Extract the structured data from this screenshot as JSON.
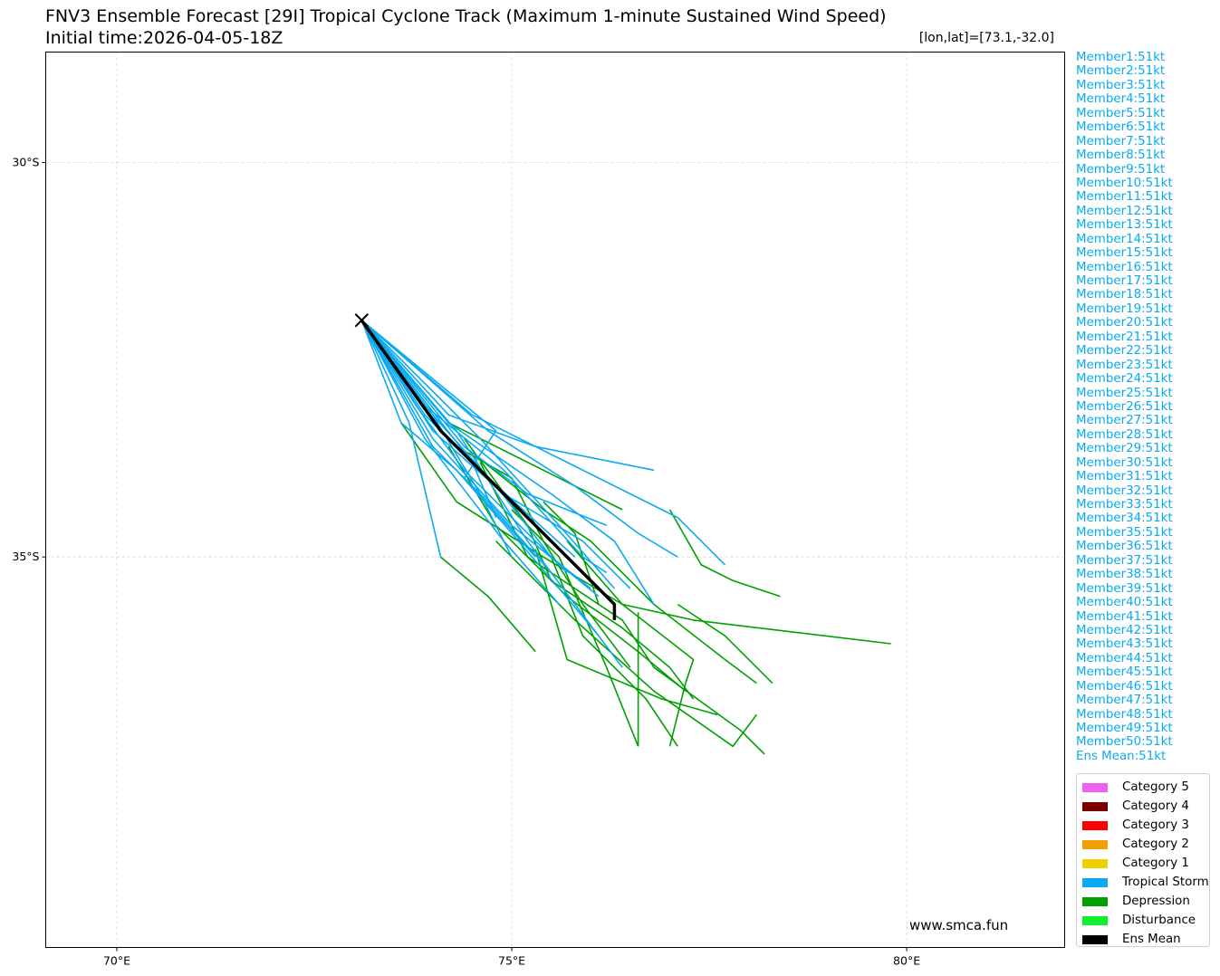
{
  "title": {
    "line1": "FNV3 Ensemble Forecast [29I] Tropical Cyclone Track (Maximum 1-minute Sustained Wind Speed)",
    "line2": "Initial time:2026-04-05-18Z"
  },
  "position_label": "[lon,lat]=[73.1,-32.0]",
  "watermark": "www.smca.fun",
  "members": [
    "Member1:51kt",
    "Member2:51kt",
    "Member3:51kt",
    "Member4:51kt",
    "Member5:51kt",
    "Member6:51kt",
    "Member7:51kt",
    "Member8:51kt",
    "Member9:51kt",
    "Member10:51kt",
    "Member11:51kt",
    "Member12:51kt",
    "Member13:51kt",
    "Member14:51kt",
    "Member15:51kt",
    "Member16:51kt",
    "Member17:51kt",
    "Member18:51kt",
    "Member19:51kt",
    "Member20:51kt",
    "Member21:51kt",
    "Member22:51kt",
    "Member23:51kt",
    "Member24:51kt",
    "Member25:51kt",
    "Member26:51kt",
    "Member27:51kt",
    "Member28:51kt",
    "Member29:51kt",
    "Member30:51kt",
    "Member31:51kt",
    "Member32:51kt",
    "Member33:51kt",
    "Member34:51kt",
    "Member35:51kt",
    "Member36:51kt",
    "Member37:51kt",
    "Member38:51kt",
    "Member39:51kt",
    "Member40:51kt",
    "Member41:51kt",
    "Member42:51kt",
    "Member43:51kt",
    "Member44:51kt",
    "Member45:51kt",
    "Member46:51kt",
    "Member47:51kt",
    "Member48:51kt",
    "Member49:51kt",
    "Member50:51kt",
    "Ens Mean:51kt"
  ],
  "legend": [
    {
      "label": "Category 5",
      "color": "#f060f0"
    },
    {
      "label": "Category 4",
      "color": "#7a0000"
    },
    {
      "label": "Category 3",
      "color": "#ff0000"
    },
    {
      "label": "Category 2",
      "color": "#f0a000"
    },
    {
      "label": "Category 1",
      "color": "#f0d000"
    },
    {
      "label": "Tropical Storm",
      "color": "#0aaaf0"
    },
    {
      "label": "Depression",
      "color": "#00a000"
    },
    {
      "label": "Disturbance",
      "color": "#10f030"
    },
    {
      "label": "Ens Mean",
      "color": "#000000"
    }
  ],
  "chart_data": {
    "type": "line",
    "xlim": [
      69.1,
      82.0
    ],
    "ylim": [
      -39.95,
      -28.6
    ],
    "x_ticks": [
      {
        "value": 70,
        "label": "70°E"
      },
      {
        "value": 75,
        "label": "75°E"
      },
      {
        "value": 80,
        "label": "80°E"
      }
    ],
    "y_ticks": [
      {
        "value": -30,
        "label": "30°S"
      },
      {
        "value": -35,
        "label": "35°S"
      }
    ],
    "grid": true,
    "start_marker": {
      "lon": 73.1,
      "lat": -32.0
    },
    "storm_color": "#0aaaf0",
    "depression_color": "#00a000",
    "mean_color": "#000000",
    "storm_tracks": [
      [
        [
          73.1,
          -32.0
        ],
        [
          74.3,
          -33.4
        ],
        [
          75.2,
          -34.8
        ],
        [
          76.4,
          -36.4
        ]
      ],
      [
        [
          73.1,
          -32.0
        ],
        [
          74.6,
          -33.5
        ],
        [
          75.6,
          -34.6
        ],
        [
          76.3,
          -35.4
        ]
      ],
      [
        [
          73.1,
          -32.0
        ],
        [
          73.9,
          -33.2
        ],
        [
          74.7,
          -34.0
        ],
        [
          75.8,
          -35.0
        ]
      ],
      [
        [
          73.1,
          -32.0
        ],
        [
          73.7,
          -33.3
        ],
        [
          74.1,
          -35.0
        ]
      ],
      [
        [
          73.1,
          -32.0
        ],
        [
          74.0,
          -33.5
        ],
        [
          75.0,
          -34.6
        ],
        [
          76.1,
          -35.5
        ]
      ],
      [
        [
          73.1,
          -32.0
        ],
        [
          74.2,
          -33.2
        ],
        [
          75.3,
          -33.6
        ],
        [
          76.8,
          -33.9
        ]
      ],
      [
        [
          73.1,
          -32.0
        ],
        [
          74.5,
          -33.2
        ],
        [
          75.9,
          -33.9
        ],
        [
          77.1,
          -34.5
        ],
        [
          77.7,
          -35.1
        ]
      ],
      [
        [
          73.1,
          -32.0
        ],
        [
          74.2,
          -33.3
        ],
        [
          75.5,
          -34.2
        ],
        [
          76.3,
          -34.8
        ],
        [
          76.8,
          -35.6
        ]
      ],
      [
        [
          73.1,
          -32.0
        ],
        [
          73.6,
          -33.3
        ],
        [
          74.3,
          -33.9
        ],
        [
          75.0,
          -34.7
        ],
        [
          75.6,
          -35.4
        ],
        [
          76.1,
          -36.0
        ]
      ],
      [
        [
          73.1,
          -32.0
        ],
        [
          74.0,
          -33.6
        ],
        [
          74.7,
          -34.3
        ],
        [
          75.5,
          -35.2
        ]
      ],
      [
        [
          73.1,
          -32.0
        ],
        [
          74.7,
          -33.4
        ],
        [
          75.8,
          -34.1
        ],
        [
          76.6,
          -34.7
        ],
        [
          77.1,
          -35.0
        ]
      ],
      [
        [
          73.1,
          -32.0
        ],
        [
          73.8,
          -33.1
        ],
        [
          74.4,
          -33.9
        ],
        [
          75.1,
          -34.6
        ],
        [
          75.7,
          -35.2
        ]
      ],
      [
        [
          73.1,
          -32.0
        ],
        [
          74.0,
          -33.2
        ],
        [
          74.6,
          -34.2
        ],
        [
          75.0,
          -35.0
        ]
      ],
      [
        [
          73.1,
          -32.0
        ],
        [
          74.0,
          -33.4
        ],
        [
          74.9,
          -34.2
        ],
        [
          75.9,
          -34.8
        ],
        [
          76.5,
          -35.4
        ]
      ],
      [
        [
          73.1,
          -32.0
        ],
        [
          73.9,
          -33.5
        ],
        [
          74.9,
          -34.8
        ],
        [
          75.6,
          -35.6
        ]
      ],
      [
        [
          73.1,
          -32.0
        ],
        [
          74.4,
          -33.6
        ],
        [
          75.2,
          -34.2
        ],
        [
          76.2,
          -34.6
        ]
      ],
      [
        [
          73.1,
          -32.0
        ],
        [
          74.5,
          -33.8
        ],
        [
          74.8,
          -34.5
        ]
      ],
      [
        [
          73.1,
          -32.0
        ],
        [
          74.8,
          -33.4
        ],
        [
          74.4,
          -34.0
        ],
        [
          75.3,
          -35.0
        ]
      ],
      [
        [
          73.1,
          -32.0
        ],
        [
          73.8,
          -33.0
        ],
        [
          74.9,
          -33.9
        ],
        [
          75.9,
          -35.0
        ],
        [
          76.2,
          -35.2
        ]
      ],
      [
        [
          73.1,
          -32.0
        ],
        [
          74.0,
          -33.2
        ],
        [
          74.8,
          -34.1
        ],
        [
          75.5,
          -35.0
        ],
        [
          76.0,
          -35.4
        ]
      ]
    ],
    "depression_tracks": [
      [
        [
          73.1,
          -32.0
        ],
        [
          74.2,
          -33.3
        ],
        [
          75.4,
          -33.9
        ],
        [
          76.4,
          -34.4
        ]
      ],
      [
        [
          73.6,
          -33.3
        ],
        [
          74.3,
          -34.3
        ],
        [
          75.4,
          -35.0
        ],
        [
          76.4,
          -35.6
        ],
        [
          77.3,
          -35.8
        ],
        [
          79.8,
          -36.1
        ]
      ],
      [
        [
          74.4,
          -33.6
        ],
        [
          75.4,
          -34.4
        ],
        [
          76.0,
          -34.8
        ],
        [
          76.8,
          -35.6
        ],
        [
          77.7,
          -36.3
        ],
        [
          78.1,
          -36.6
        ]
      ],
      [
        [
          74.6,
          -33.8
        ],
        [
          75.2,
          -35.0
        ],
        [
          76.4,
          -35.8
        ],
        [
          76.8,
          -36.4
        ],
        [
          77.9,
          -37.2
        ],
        [
          78.2,
          -37.5
        ]
      ],
      [
        [
          74.1,
          -35.0
        ],
        [
          74.7,
          -35.5
        ],
        [
          75.3,
          -36.2
        ]
      ],
      [
        [
          74.3,
          -33.6
        ],
        [
          75.0,
          -34.0
        ],
        [
          75.4,
          -34.8
        ],
        [
          75.9,
          -35.6
        ],
        [
          76.5,
          -36.4
        ]
      ],
      [
        [
          75.0,
          -34.4
        ],
        [
          75.6,
          -35.0
        ],
        [
          76.2,
          -36.4
        ],
        [
          76.6,
          -37.4
        ]
      ],
      [
        [
          75.5,
          -35.0
        ],
        [
          75.9,
          -36.0
        ],
        [
          76.7,
          -36.8
        ],
        [
          77.1,
          -37.4
        ]
      ],
      [
        [
          75.7,
          -34.8
        ],
        [
          76.4,
          -35.6
        ],
        [
          77.3,
          -36.3
        ],
        [
          77.2,
          -36.6
        ],
        [
          77.0,
          -37.4
        ]
      ],
      [
        [
          74.2,
          -33.6
        ],
        [
          74.8,
          -34.6
        ],
        [
          75.7,
          -35.5
        ],
        [
          76.6,
          -36.2
        ],
        [
          77.2,
          -36.7
        ]
      ],
      [
        [
          75.4,
          -34.3
        ],
        [
          75.8,
          -34.7
        ],
        [
          76.1,
          -35.6
        ]
      ],
      [
        [
          76.6,
          -35.7
        ],
        [
          76.6,
          -37.4
        ]
      ],
      [
        [
          77.1,
          -35.6
        ],
        [
          77.7,
          -36.0
        ],
        [
          78.3,
          -36.6
        ]
      ],
      [
        [
          74.8,
          -34.8
        ],
        [
          75.8,
          -35.8
        ],
        [
          76.8,
          -36.7
        ],
        [
          77.8,
          -37.4
        ],
        [
          78.1,
          -37.0
        ]
      ],
      [
        [
          75.3,
          -34.9
        ],
        [
          75.7,
          -36.3
        ],
        [
          76.9,
          -36.8
        ],
        [
          77.6,
          -37.0
        ]
      ],
      [
        [
          77.0,
          -34.4
        ],
        [
          77.4,
          -35.1
        ],
        [
          77.8,
          -35.3
        ],
        [
          78.4,
          -35.5
        ]
      ],
      [
        [
          74.4,
          -33.5
        ],
        [
          75.2,
          -34.6
        ],
        [
          75.5,
          -35.3
        ],
        [
          76.4,
          -35.9
        ],
        [
          77.0,
          -36.4
        ],
        [
          77.3,
          -36.8
        ]
      ]
    ],
    "mean_track": [
      [
        73.1,
        -32.0
      ],
      [
        74.1,
        -33.4
      ],
      [
        75.0,
        -34.3
      ],
      [
        75.8,
        -35.1
      ],
      [
        76.3,
        -35.6
      ],
      [
        76.3,
        -35.8
      ]
    ]
  }
}
